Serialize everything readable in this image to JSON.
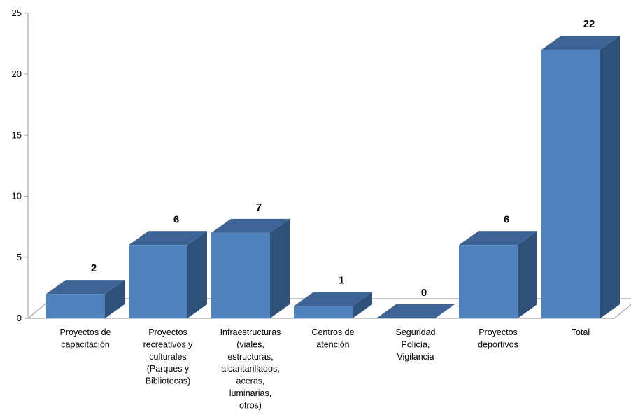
{
  "chart_data": {
    "type": "bar",
    "title": "",
    "xlabel": "",
    "ylabel": "",
    "ylim": [
      0,
      25
    ],
    "yticks": [
      "0",
      "5",
      "10",
      "15",
      "20",
      "25"
    ],
    "categories": [
      [
        "Proyectos de",
        "capacitación"
      ],
      [
        "Proyectos",
        "recreativos y",
        "culturales",
        "(Parques y",
        "Bibliotecas)"
      ],
      [
        "Infraestructuras",
        "(viales,",
        "estructuras,",
        "alcantarillados,",
        "aceras,",
        "luminarias,",
        "otros)"
      ],
      [
        "Centros de",
        "atención"
      ],
      [
        "Seguridad",
        "Policía,",
        "Vigilancia"
      ],
      [
        "Proyectos",
        "deportivos"
      ],
      [
        "Total"
      ]
    ],
    "values": [
      2,
      6,
      7,
      1,
      0,
      6,
      22
    ],
    "data_labels": [
      "2",
      "6",
      "7",
      "1",
      "0",
      "6",
      "22"
    ],
    "style": "3d-column",
    "grid": false,
    "legend": "none",
    "colors": {
      "front": "#4f81bd",
      "top": "#3e6496",
      "side": "#2f5078",
      "axis": "#a6a6a6"
    }
  }
}
